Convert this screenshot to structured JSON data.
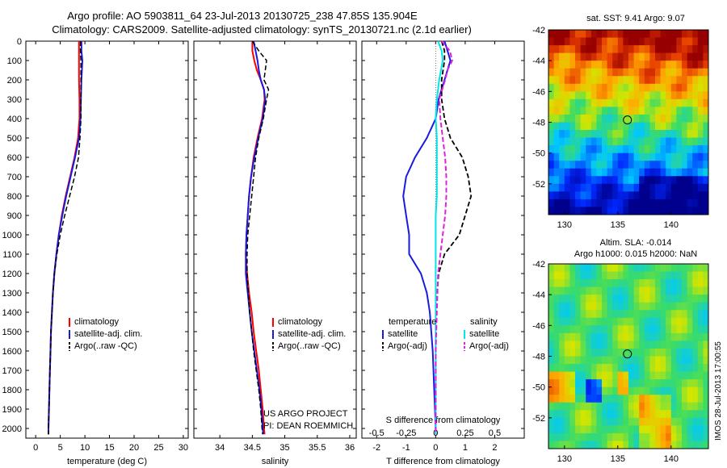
{
  "title_line1": "Argo profile: AO 5903811_64 23-Jul-2013 20130725_238 47.85S 135.904E",
  "title_line2": "Climatology: CARS2009. Satellite-adjusted climatology: synTS_20130721.nc (2.1d earlier)",
  "side_label": "IMOS 28-Jul-2013 17:00:55",
  "colors": {
    "climatology": "#ff0000",
    "satellite": "#1a1adf",
    "argo": "#000000",
    "sat_salinity": "#00e5e5",
    "argo_salinity": "#e020e0"
  },
  "chart_data": [
    {
      "type": "line",
      "xlabel": "temperature (deg C)",
      "ylabel": "",
      "xlim": [
        -2,
        31
      ],
      "ylim": [
        2050,
        0
      ],
      "xticks": [
        "0",
        "5",
        "10",
        "15",
        "20",
        "25",
        "30"
      ],
      "yticks": [
        "0",
        "100",
        "200",
        "300",
        "400",
        "500",
        "600",
        "700",
        "800",
        "900",
        "1000",
        "1100",
        "1200",
        "1300",
        "1400",
        "1500",
        "1600",
        "1700",
        "1800",
        "1900",
        "2000"
      ],
      "legend": [
        "climatology",
        "satellite-adj. clim.",
        "Argo(..raw -QC)"
      ],
      "series": [
        {
          "name": "climatology",
          "depth": [
            0,
            50,
            100,
            200,
            300,
            400,
            500,
            600,
            700,
            800,
            900,
            1000,
            1100,
            1200,
            1300,
            1400,
            1500,
            1600,
            1700,
            1800,
            1900,
            2000,
            2030
          ],
          "values": [
            8.8,
            8.8,
            8.8,
            8.8,
            8.9,
            8.9,
            8.6,
            7.9,
            7.0,
            6.1,
            5.3,
            4.7,
            4.2,
            3.8,
            3.5,
            3.3,
            3.1,
            3.0,
            2.9,
            2.8,
            2.7,
            2.6,
            2.6
          ]
        },
        {
          "name": "satellite-adj. clim.",
          "depth": [
            0,
            50,
            100,
            200,
            300,
            400,
            500,
            600,
            700,
            800,
            900,
            1000,
            1100,
            1200,
            1300,
            1400,
            1500,
            1600,
            1700,
            1800,
            1900,
            2000,
            2030
          ],
          "values": [
            9.3,
            9.3,
            9.5,
            9.3,
            9.2,
            9.1,
            8.8,
            8.0,
            7.1,
            6.2,
            5.4,
            4.7,
            4.2,
            3.8,
            3.5,
            3.3,
            3.1,
            3.0,
            2.9,
            2.8,
            2.7,
            2.6,
            2.6
          ]
        },
        {
          "name": "Argo(..raw -QC)",
          "depth": [
            0,
            50,
            100,
            200,
            300,
            400,
            500,
            600,
            700,
            800,
            900,
            1000,
            1100,
            1200,
            1300,
            1400,
            1500,
            1600,
            1700,
            1800,
            1900,
            2000,
            2030
          ],
          "values": [
            9.1,
            9.1,
            9.2,
            9.2,
            9.2,
            9.2,
            9.0,
            8.7,
            7.9,
            6.9,
            5.9,
            5.0,
            4.3,
            3.8,
            3.5,
            3.3,
            3.1,
            3.0,
            2.9,
            2.8,
            2.7,
            2.6,
            2.6
          ]
        }
      ]
    },
    {
      "type": "line",
      "xlabel": "salinity",
      "ylabel": "",
      "xlim": [
        33.6,
        36.1
      ],
      "ylim": [
        2050,
        0
      ],
      "xticks": [
        "34",
        "34.5",
        "35",
        "35.5",
        "36"
      ],
      "legend": [
        "climatology",
        "satellite-adj. clim.",
        "Argo(..raw -QC)"
      ],
      "series": [
        {
          "name": "climatology",
          "depth": [
            0,
            50,
            100,
            150,
            200,
            250,
            300,
            400,
            500,
            600,
            700,
            800,
            900,
            1000,
            1100,
            1200,
            1300,
            1400,
            1500,
            1600,
            1700,
            1800,
            1900,
            2000,
            2030
          ],
          "values": [
            34.5,
            34.5,
            34.53,
            34.57,
            34.63,
            34.68,
            34.69,
            34.65,
            34.58,
            34.52,
            34.48,
            34.45,
            34.43,
            34.41,
            34.4,
            34.42,
            34.45,
            34.49,
            34.52,
            34.56,
            34.6,
            34.63,
            34.66,
            34.68,
            34.69
          ]
        },
        {
          "name": "satellite-adj. clim.",
          "depth": [
            0,
            50,
            100,
            150,
            200,
            250,
            300,
            400,
            500,
            600,
            700,
            800,
            900,
            1000,
            1100,
            1200,
            1300,
            1400,
            1500,
            1600,
            1700,
            1800,
            1900,
            2000,
            2030
          ],
          "values": [
            34.52,
            34.55,
            34.58,
            34.6,
            34.63,
            34.68,
            34.7,
            34.66,
            34.59,
            34.53,
            34.48,
            34.45,
            34.43,
            34.41,
            34.4,
            34.4,
            34.43,
            34.46,
            34.49,
            34.53,
            34.57,
            34.61,
            34.64,
            34.66,
            34.67
          ]
        },
        {
          "name": "Argo(..raw -QC)",
          "depth": [
            0,
            50,
            100,
            150,
            200,
            250,
            300,
            400,
            500,
            600,
            700,
            800,
            900,
            1000,
            1100,
            1200,
            1300,
            1400,
            1500,
            1600,
            1700,
            1800,
            1900,
            2000,
            2030
          ],
          "values": [
            34.5,
            34.6,
            34.72,
            34.7,
            34.68,
            34.75,
            34.72,
            34.67,
            34.6,
            34.55,
            34.52,
            34.49,
            34.46,
            34.43,
            34.42,
            34.42,
            34.44,
            34.46,
            34.49,
            34.52,
            34.56,
            34.6,
            34.63,
            34.65,
            34.66
          ]
        }
      ],
      "annotation": [
        "US ARGO PROJECT",
        "PI: DEAN ROEMMICH"
      ]
    },
    {
      "type": "line",
      "xlabel": "T difference from climatology",
      "xlabel_top": "S difference from climatology",
      "xlim": [
        -2.5,
        3
      ],
      "ylim": [
        2050,
        0
      ],
      "xticks": [
        "-2",
        "-1",
        "0",
        "1",
        "2"
      ],
      "xticks_top": [
        "-0.5",
        "-0.25",
        "0",
        "0.25",
        "0.5"
      ],
      "legend_temperature": {
        "title": "temperature",
        "items": [
          "satellite",
          "Argo(-adj)"
        ]
      },
      "legend_salinity": {
        "title": "salinity",
        "items": [
          "satellite",
          "Argo(-adj)"
        ]
      },
      "series": [
        {
          "name": "temperature satellite",
          "depth": [
            0,
            50,
            100,
            200,
            300,
            400,
            500,
            600,
            700,
            800,
            900,
            1000,
            1100,
            1200,
            1300,
            1400,
            1600,
            1800,
            2000,
            2030
          ],
          "values": [
            0.3,
            0.4,
            0.5,
            0.3,
            0.1,
            0,
            -0.3,
            -0.7,
            -1.0,
            -1.1,
            -1.0,
            -0.9,
            -0.9,
            -0.5,
            -0.3,
            -0.2,
            -0.1,
            -0.05,
            0,
            0
          ]
        },
        {
          "name": "temperature Argo(-adj)",
          "depth": [
            0,
            50,
            100,
            200,
            300,
            400,
            500,
            600,
            700,
            800,
            900,
            1000,
            1100,
            1200,
            1300,
            1400,
            1600,
            1800,
            2000,
            2030
          ],
          "values": [
            0.2,
            0.3,
            0.3,
            0.2,
            0.2,
            0.3,
            0.5,
            0.9,
            1.1,
            1.2,
            1.0,
            0.8,
            0.3,
            0.1,
            0.05,
            0,
            0,
            0,
            0,
            0
          ]
        },
        {
          "name": "salinity satellite",
          "depth": [
            0,
            50,
            100,
            200,
            300,
            400,
            500,
            600,
            700,
            800,
            900,
            1000,
            1200,
            1400,
            1600,
            1800,
            2000,
            2030
          ],
          "values": [
            0.02,
            0.05,
            0.06,
            0.03,
            0.01,
            0,
            0.01,
            0.01,
            0.01,
            0.01,
            0,
            0,
            0,
            0,
            0,
            0,
            0,
            0
          ]
        },
        {
          "name": "salinity Argo(-adj)",
          "depth": [
            0,
            50,
            100,
            150,
            200,
            300,
            400,
            500,
            600,
            700,
            800,
            900,
            1000,
            1200,
            1400,
            1600,
            1800,
            2000,
            2030
          ],
          "values": [
            0.05,
            0.12,
            0.14,
            0.1,
            0.08,
            0.03,
            0.04,
            0.06,
            0.08,
            0.09,
            0.09,
            0.08,
            0.06,
            0.02,
            0.01,
            0,
            0,
            0,
            0
          ]
        }
      ]
    },
    {
      "type": "heatmap",
      "title": "sat. SST: 9.41  Argo: 9.07",
      "xticks": [
        "130",
        "135",
        "140"
      ],
      "yticks": [
        "-42",
        "-44",
        "-46",
        "-48",
        "-50",
        "-52"
      ],
      "xlim": [
        128.5,
        143.5
      ],
      "ylim": [
        -54,
        -42
      ],
      "marker": {
        "lon": 135.904,
        "lat": -47.85
      }
    },
    {
      "type": "heatmap",
      "title": "Altim. SLA: -0.014",
      "subtitle": "Argo h1000: 0.015 h2000: NaN",
      "xticks": [
        "130",
        "135",
        "140"
      ],
      "yticks": [
        "-42",
        "-44",
        "-46",
        "-48",
        "-50",
        "-52"
      ],
      "xlim": [
        128.5,
        143.5
      ],
      "ylim": [
        -54,
        -42
      ],
      "marker": {
        "lon": 135.904,
        "lat": -47.85
      }
    }
  ]
}
